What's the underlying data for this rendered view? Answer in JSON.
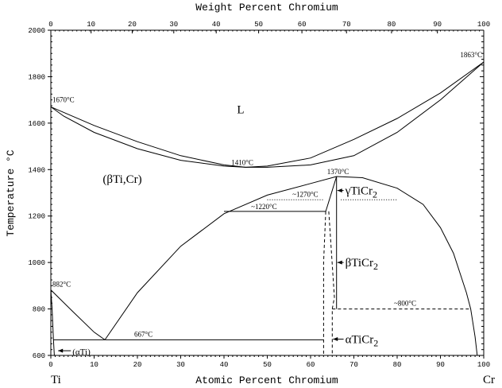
{
  "chart_data": {
    "type": "line",
    "title": "",
    "xlabel": "Atomic Percent Chromium",
    "x2label": "Weight Percent Chromium",
    "ylabel": "Temperature °C",
    "xlim": [
      0,
      100
    ],
    "ylim": [
      600,
      2000
    ],
    "grid": false,
    "x_ticks": [
      "0",
      "10",
      "20",
      "30",
      "40",
      "50",
      "60",
      "70",
      "80",
      "90",
      "100"
    ],
    "x2_ticks": [
      "0",
      "10",
      "20",
      "30",
      "40",
      "50",
      "60",
      "70",
      "80",
      "90",
      "100"
    ],
    "y_ticks": [
      "600",
      "800",
      "1000",
      "1200",
      "1400",
      "1600",
      "1800",
      "2000"
    ],
    "y_tick_values": [
      600,
      800,
      1000,
      1200,
      1400,
      1600,
      1800,
      2000
    ],
    "x2_tick_atomic_positions": [
      0,
      9.3,
      18.8,
      28.4,
      38.2,
      48.0,
      58.0,
      68.3,
      78.7,
      89.3,
      100
    ],
    "element_labels": {
      "left": "Ti",
      "right": "Cr"
    },
    "series": [
      {
        "name": "liquidus",
        "style": "solid",
        "points": [
          [
            0,
            1670
          ],
          [
            10,
            1590
          ],
          [
            20,
            1520
          ],
          [
            30,
            1460
          ],
          [
            40,
            1420
          ],
          [
            45,
            1410
          ],
          [
            50,
            1415
          ],
          [
            60,
            1450
          ],
          [
            70,
            1530
          ],
          [
            80,
            1620
          ],
          [
            90,
            1730
          ],
          [
            100,
            1863
          ]
        ]
      },
      {
        "name": "solidus",
        "style": "solid",
        "points": [
          [
            0,
            1670
          ],
          [
            3,
            1630
          ],
          [
            10,
            1560
          ],
          [
            20,
            1490
          ],
          [
            30,
            1440
          ],
          [
            40,
            1415
          ],
          [
            45,
            1410
          ],
          [
            50,
            1410
          ],
          [
            60,
            1420
          ],
          [
            70,
            1460
          ],
          [
            80,
            1560
          ],
          [
            90,
            1700
          ],
          [
            100,
            1863
          ]
        ]
      },
      {
        "name": "bcc-solvus-left",
        "style": "solid",
        "points": [
          [
            12.5,
            667
          ],
          [
            20,
            870
          ],
          [
            30,
            1070
          ],
          [
            40,
            1210
          ],
          [
            50,
            1290
          ],
          [
            60,
            1340
          ],
          [
            66,
            1370
          ]
        ]
      },
      {
        "name": "bcc-solvus-right",
        "style": "solid",
        "points": [
          [
            66,
            1370
          ],
          [
            72,
            1365
          ],
          [
            80,
            1320
          ],
          [
            86,
            1250
          ],
          [
            90,
            1150
          ],
          [
            93,
            1040
          ],
          [
            96,
            870
          ],
          [
            97,
            800
          ],
          [
            98,
            680
          ],
          [
            98.5,
            600
          ]
        ]
      },
      {
        "name": "alpha-beta-Ti-transus",
        "style": "solid",
        "points": [
          [
            0,
            882
          ],
          [
            5,
            790
          ],
          [
            10,
            700
          ],
          [
            12.5,
            667
          ]
        ]
      },
      {
        "name": "alpha-Ti-solvus",
        "style": "solid",
        "points": [
          [
            0,
            882
          ],
          [
            0.3,
            800
          ],
          [
            0.6,
            667
          ],
          [
            0.8,
            600
          ]
        ]
      },
      {
        "name": "eutectoid-667",
        "style": "solid",
        "points": [
          [
            0.6,
            667
          ],
          [
            63,
            667
          ]
        ]
      },
      {
        "name": "peritectoid-1220",
        "style": "solid",
        "points": [
          [
            40,
            1220
          ],
          [
            63.5,
            1220
          ]
        ]
      },
      {
        "name": "gamma-TiCr2-left",
        "style": "solid",
        "points": [
          [
            63.5,
            1220
          ],
          [
            66,
            1370
          ]
        ]
      },
      {
        "name": "TiCr2-right",
        "style": "solid",
        "points": [
          [
            66,
            1370
          ],
          [
            66,
            800
          ]
        ]
      },
      {
        "name": "TiCr2-dashed-left",
        "style": "dashed",
        "points": [
          [
            63.5,
            1220
          ],
          [
            63,
            1000
          ],
          [
            63,
            600
          ]
        ]
      },
      {
        "name": "TiCr2-dashed-mid",
        "style": "dashed",
        "points": [
          [
            64.2,
            1220
          ],
          [
            65.5,
            850
          ],
          [
            65,
            800
          ],
          [
            65,
            600
          ]
        ]
      },
      {
        "name": "transition-800",
        "style": "dashed",
        "points": [
          [
            65,
            800
          ],
          [
            97,
            800
          ]
        ]
      },
      {
        "name": "transition-1270-dots",
        "style": "dotted",
        "points": [
          [
            50,
            1270
          ],
          [
            63,
            1270
          ]
        ]
      },
      {
        "name": "transition-1270-dots-right",
        "style": "dotted",
        "points": [
          [
            67,
            1270
          ],
          [
            80,
            1270
          ]
        ]
      }
    ],
    "annotations": [
      {
        "text": "1670°C",
        "x": 0,
        "y": 1670
      },
      {
        "text": "1863°C",
        "x": 100,
        "y": 1863
      },
      {
        "text": "1410°C",
        "x": 45,
        "y": 1410
      },
      {
        "text": "1370°C",
        "x": 66,
        "y": 1370
      },
      {
        "text": "~1270°C",
        "x": 58,
        "y": 1270
      },
      {
        "text": "~1220°C",
        "x": 47,
        "y": 1220
      },
      {
        "text": "882°C",
        "x": 0,
        "y": 882
      },
      {
        "text": "667°C",
        "x": 20,
        "y": 667
      },
      {
        "text": "~800°C",
        "x": 80,
        "y": 800
      }
    ],
    "phase_labels": [
      {
        "text": "L",
        "x": 43,
        "y": 1660
      },
      {
        "text": "(βTi,Cr)",
        "x": 12,
        "y": 1360
      },
      {
        "text": "γTiCr2",
        "x": 68,
        "y": 1310
      },
      {
        "text": "βTiCr2",
        "x": 68,
        "y": 1000
      },
      {
        "text": "αTiCr2",
        "x": 68,
        "y": 670
      },
      {
        "text": "(αTi)",
        "x": 5,
        "y": 620
      }
    ]
  }
}
